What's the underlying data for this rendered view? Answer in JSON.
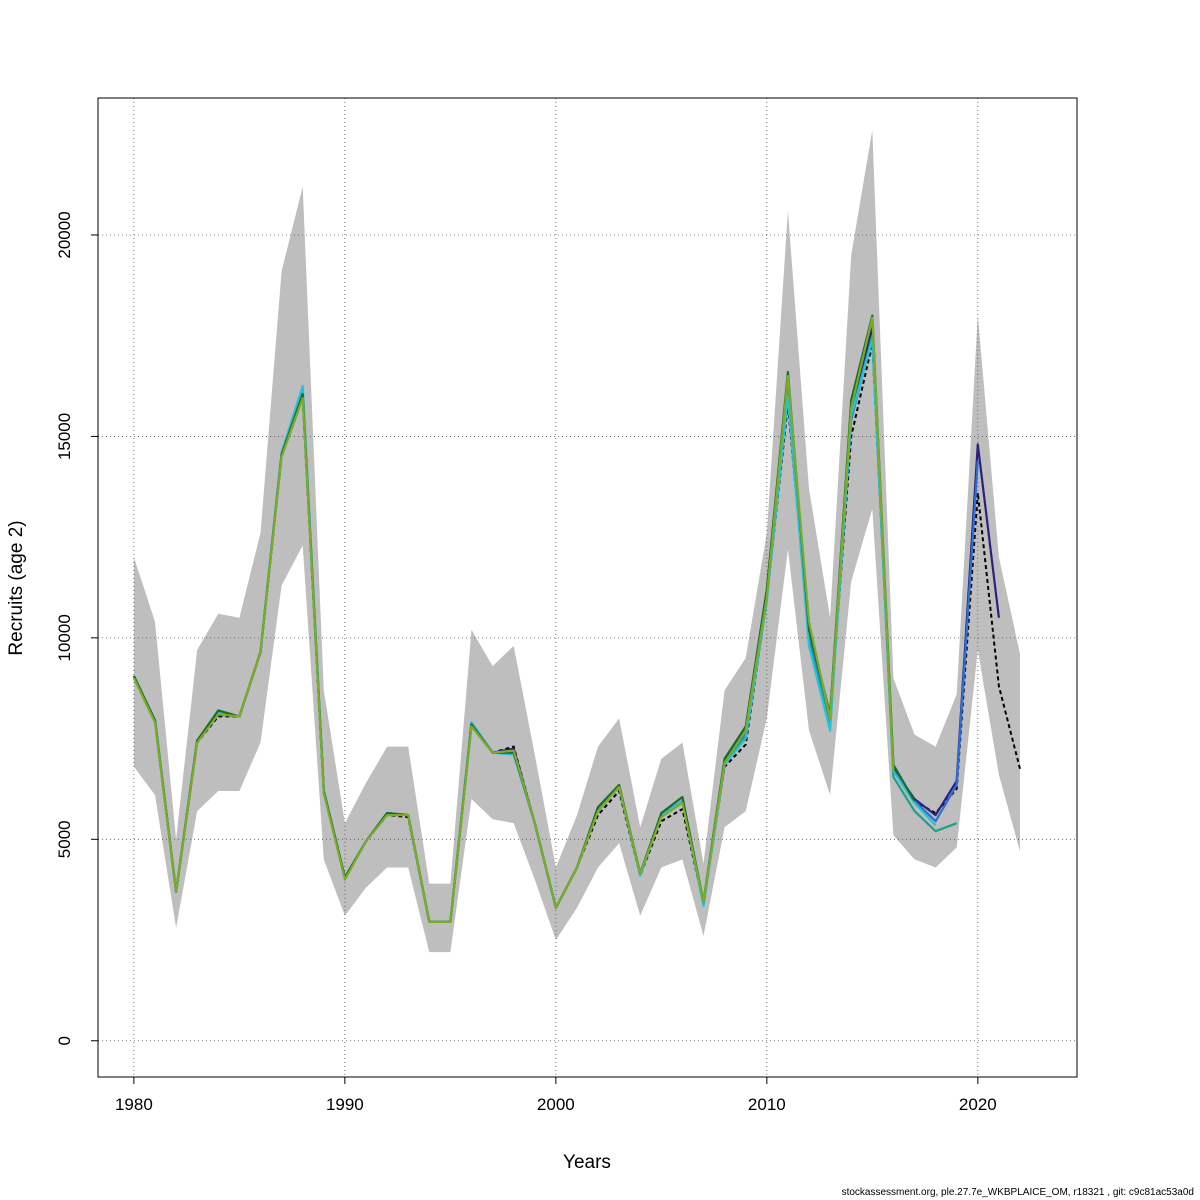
{
  "chart_data": {
    "type": "line",
    "xlabel": "Years",
    "ylabel": "Recruits (age 2)",
    "xlim": [
      1978.3,
      2024.7
    ],
    "ylim": [
      -900,
      23400
    ],
    "xticks": [
      1980,
      1990,
      2000,
      2010,
      2020
    ],
    "yticks": [
      0,
      5000,
      10000,
      15000,
      20000
    ],
    "grid": true,
    "band": {
      "x": [
        1980,
        1981,
        1982,
        1983,
        1984,
        1985,
        1986,
        1987,
        1988,
        1989,
        1990,
        1991,
        1992,
        1993,
        1994,
        1995,
        1996,
        1997,
        1998,
        1999,
        2000,
        2001,
        2002,
        2003,
        2004,
        2005,
        2006,
        2007,
        2008,
        2009,
        2010,
        2011,
        2012,
        2013,
        2014,
        2015,
        2016,
        2017,
        2018,
        2019,
        2020,
        2021,
        2022
      ],
      "upper": [
        12000,
        10400,
        5000,
        9700,
        10600,
        10500,
        12600,
        19100,
        21200,
        8700,
        5400,
        6400,
        7300,
        7300,
        3900,
        3900,
        10200,
        9300,
        9800,
        7100,
        4300,
        5600,
        7300,
        8000,
        5300,
        7000,
        7400,
        4400,
        8700,
        9500,
        12600,
        20600,
        13700,
        10500,
        19500,
        22600,
        9000,
        7600,
        7300,
        8600,
        18000,
        12000,
        9600
      ],
      "lower": [
        6800,
        6100,
        2800,
        5700,
        6200,
        6200,
        7400,
        11300,
        12300,
        4500,
        3100,
        3800,
        4300,
        4300,
        2200,
        2200,
        6000,
        5500,
        5400,
        4000,
        2500,
        3300,
        4300,
        4900,
        3100,
        4300,
        4500,
        2600,
        5300,
        5700,
        8000,
        12200,
        7700,
        6100,
        11400,
        13200,
        5100,
        4500,
        4300,
        4800,
        9700,
        6600,
        4700
      ]
    },
    "series": [
      {
        "color": "#000000",
        "dashed": true,
        "x": [
          1980,
          1981,
          1982,
          1983,
          1984,
          1985,
          1986,
          1987,
          1988,
          1989,
          1990,
          1991,
          1992,
          1993,
          1994,
          1995,
          1996,
          1997,
          1998,
          1999,
          2000,
          2001,
          2002,
          2003,
          2004,
          2005,
          2006,
          2007,
          2008,
          2009,
          2010,
          2011,
          2012,
          2013,
          2014,
          2015,
          2016,
          2017,
          2018,
          2019,
          2020,
          2021,
          2022
        ],
        "values": [
          9050,
          7950,
          3700,
          7400,
          8050,
          8050,
          9650,
          14500,
          15950,
          6150,
          4050,
          4950,
          5600,
          5550,
          2950,
          2950,
          7850,
          7150,
          7300,
          5400,
          3300,
          4300,
          5600,
          6200,
          4100,
          5450,
          5750,
          3400,
          6800,
          7350,
          10950,
          15800,
          10100,
          8000,
          15000,
          17300,
          6750,
          5950,
          5650,
          6250,
          13600,
          8800,
          6750
        ]
      },
      {
        "color": "#2e1f7a",
        "dashed": false,
        "x": [
          1980,
          1981,
          1982,
          1983,
          1984,
          1985,
          1986,
          1987,
          1988,
          1989,
          1990,
          1991,
          1992,
          1993,
          1994,
          1995,
          1996,
          1997,
          1998,
          1999,
          2000,
          2001,
          2002,
          2003,
          2004,
          2005,
          2006,
          2007,
          2008,
          2009,
          2010,
          2011,
          2012,
          2013,
          2014,
          2015,
          2016,
          2017,
          2018,
          2019,
          2020,
          2021
        ],
        "values": [
          9050,
          7950,
          3700,
          7450,
          8100,
          8050,
          9650,
          14550,
          16000,
          6200,
          4050,
          4950,
          5650,
          5600,
          2950,
          2950,
          7850,
          7150,
          7250,
          5400,
          3300,
          4300,
          5750,
          6300,
          4150,
          5600,
          5950,
          3450,
          6950,
          7700,
          11050,
          16200,
          10250,
          8050,
          15600,
          17700,
          6750,
          6000,
          5600,
          6450,
          14800,
          10500
        ]
      },
      {
        "color": "#2e6fd6",
        "dashed": false,
        "x": [
          1980,
          1981,
          1982,
          1983,
          1984,
          1985,
          1986,
          1987,
          1988,
          1989,
          1990,
          1991,
          1992,
          1993,
          1994,
          1995,
          1996,
          1997,
          1998,
          1999,
          2000,
          2001,
          2002,
          2003,
          2004,
          2005,
          2006,
          2007,
          2008,
          2009,
          2010,
          2011,
          2012,
          2013,
          2014,
          2015,
          2016,
          2017,
          2018,
          2019,
          2020
        ],
        "values": [
          9050,
          7950,
          3700,
          7450,
          8150,
          8050,
          9650,
          14550,
          16050,
          6200,
          4050,
          4950,
          5650,
          5600,
          2950,
          2950,
          7900,
          7150,
          7200,
          5400,
          3300,
          4300,
          5750,
          6300,
          4150,
          5600,
          5950,
          3400,
          6900,
          7600,
          11000,
          16100,
          10000,
          7900,
          15400,
          17500,
          6700,
          5950,
          5450,
          6350,
          14400
        ]
      },
      {
        "color": "#1fa08a",
        "dashed": false,
        "x": [
          1980,
          1981,
          1982,
          1983,
          1984,
          1985,
          1986,
          1987,
          1988,
          1989,
          1990,
          1991,
          1992,
          1993,
          1994,
          1995,
          1996,
          1997,
          1998,
          1999,
          2000,
          2001,
          2002,
          2003,
          2004,
          2005,
          2006,
          2007,
          2008,
          2009,
          2010,
          2011,
          2012,
          2013,
          2014,
          2015,
          2016,
          2017,
          2018,
          2019
        ],
        "values": [
          9050,
          7950,
          3700,
          7450,
          8150,
          8050,
          9650,
          14550,
          16100,
          6200,
          4050,
          4950,
          5650,
          5600,
          2950,
          2950,
          7900,
          7150,
          7150,
          5400,
          3300,
          4300,
          5750,
          6300,
          4150,
          5600,
          5950,
          3400,
          6900,
          7550,
          11000,
          16200,
          9900,
          7800,
          15500,
          17500,
          6550,
          5700,
          5200,
          5400
        ]
      },
      {
        "color": "#27c0d8",
        "dashed": false,
        "x": [
          1980,
          1981,
          1982,
          1983,
          1984,
          1985,
          1986,
          1987,
          1988,
          1989,
          1990,
          1991,
          1992,
          1993,
          1994,
          1995,
          1996,
          1997,
          1998,
          1999,
          2000,
          2001,
          2002,
          2003,
          2004,
          2005,
          2006,
          2007,
          2008,
          2009,
          2010,
          2011,
          2012,
          2013,
          2014,
          2015,
          2016,
          2017,
          2018
        ],
        "values": [
          9050,
          7950,
          3700,
          7450,
          8150,
          8050,
          9650,
          14600,
          16250,
          6200,
          4050,
          4950,
          5650,
          5600,
          2950,
          2950,
          7900,
          7150,
          7100,
          5400,
          3300,
          4300,
          5750,
          6300,
          4100,
          5600,
          5950,
          3350,
          6850,
          7500,
          10900,
          16000,
          9800,
          7700,
          15500,
          17400,
          6700,
          5900,
          5350
        ]
      },
      {
        "color": "#1a6b2a",
        "dashed": false,
        "x": [
          1980,
          1981,
          1982,
          1983,
          1984,
          1985,
          1986,
          1987,
          1988,
          1989,
          1990,
          1991,
          1992,
          1993,
          1994,
          1995,
          1996,
          1997,
          1998,
          1999,
          2000,
          2001,
          2002,
          2003,
          2004,
          2005,
          2006,
          2007,
          2008,
          2009,
          2010,
          2011,
          2012,
          2013,
          2014,
          2015,
          2016,
          2017
        ],
        "values": [
          9050,
          7950,
          3700,
          7450,
          8200,
          8050,
          9650,
          14550,
          16050,
          6200,
          4050,
          4950,
          5650,
          5600,
          2950,
          2950,
          7850,
          7150,
          7150,
          5400,
          3300,
          4300,
          5800,
          6350,
          4150,
          5650,
          6050,
          3450,
          7000,
          7800,
          11200,
          16600,
          10200,
          8100,
          15900,
          18000,
          6850,
          5950
        ]
      },
      {
        "color": "#7cab2a",
        "dashed": false,
        "x": [
          1980,
          1981,
          1982,
          1983,
          1984,
          1985,
          1986,
          1987,
          1988,
          1989,
          1990,
          1991,
          1992,
          1993,
          1994,
          1995,
          1996,
          1997,
          1998,
          1999,
          2000,
          2001,
          2002,
          2003,
          2004,
          2005,
          2006,
          2007,
          2008,
          2009,
          2010,
          2011,
          2012,
          2013,
          2014,
          2015,
          2016
        ],
        "values": [
          9000,
          7900,
          3700,
          7400,
          8100,
          8050,
          9650,
          14500,
          15950,
          6150,
          4000,
          4950,
          5600,
          5600,
          2950,
          2950,
          7800,
          7150,
          7200,
          5400,
          3300,
          4300,
          5700,
          6300,
          4150,
          5550,
          5900,
          3450,
          6900,
          7700,
          11000,
          16500,
          10400,
          8000,
          15700,
          17950,
          6700
        ]
      }
    ]
  },
  "footer": "stockassessment.org, ple.27.7e_WKBPLAICE_OM, r18321 , git: c9c81ac53a0d"
}
